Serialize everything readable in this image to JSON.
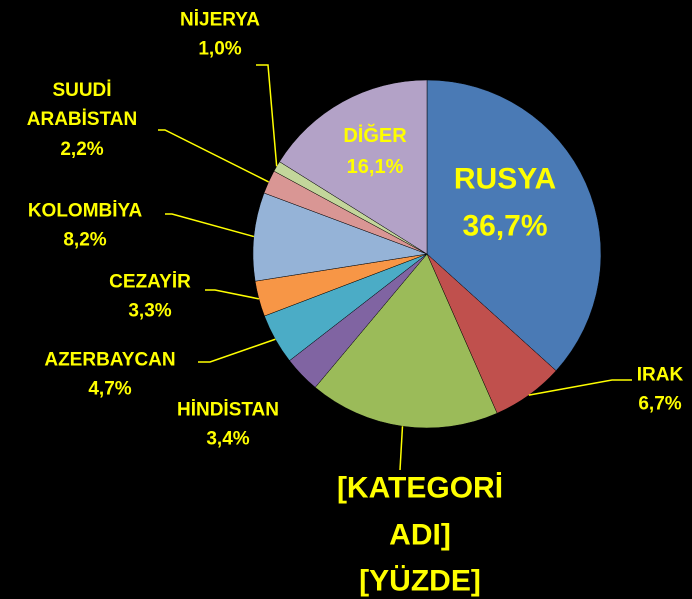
{
  "chart_data": {
    "type": "pie",
    "categories": [
      "RUSYA",
      "IRAK",
      "[KATEGORİ ADI]",
      "HİNDİSTAN",
      "AZERBAYCAN",
      "CEZAYİR",
      "KOLOMBİYA",
      "SUUDİ ARABİSTAN",
      "NİJERYA",
      "DİĞER"
    ],
    "values": [
      36.7,
      6.7,
      17.7,
      3.4,
      4.7,
      3.3,
      8.2,
      2.2,
      1.0,
      16.1
    ],
    "value_labels": [
      "36,7%",
      "6,7%",
      "[YÜZDE]",
      "3,4%",
      "4,7%",
      "3,3%",
      "8,2%",
      "2,2%",
      "1,0%",
      "16,1%"
    ],
    "colors": [
      "#4a7ab5",
      "#c0504d",
      "#9bbb59",
      "#8064a2",
      "#4bacc6",
      "#f79646",
      "#95b3d7",
      "#d99694",
      "#c3d69b",
      "#b3a2c7"
    ]
  }
}
